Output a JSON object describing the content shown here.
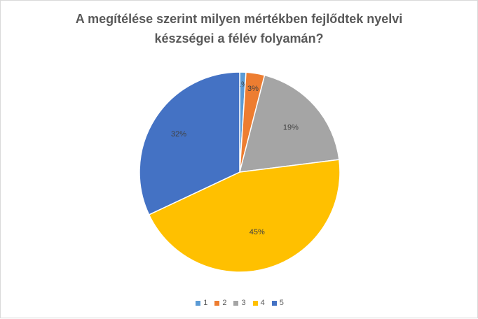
{
  "chart_data": {
    "type": "pie",
    "title_lines": [
      "A megítélése szerint milyen mértékben fejlődtek nyelvi",
      "készségei a félév folyamán?"
    ],
    "categories": [
      "1",
      "2",
      "3",
      "4",
      "5"
    ],
    "values": [
      1,
      3,
      19,
      45,
      32
    ],
    "labels": [
      "1%",
      "3%",
      "19%",
      "45%",
      "32%"
    ],
    "colors": [
      "#5b9bd5",
      "#ed7d31",
      "#a5a5a5",
      "#ffc000",
      "#4472c4"
    ],
    "legend_position": "bottom"
  }
}
